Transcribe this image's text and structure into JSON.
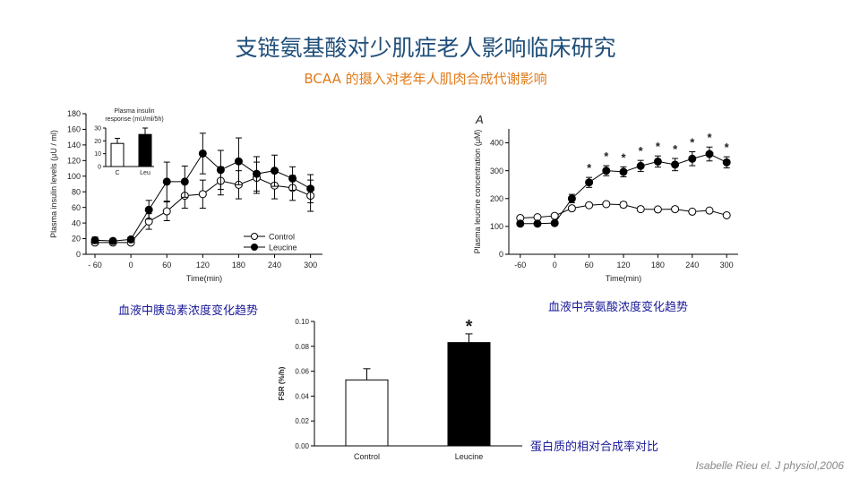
{
  "header": {
    "title": "支链氨基酸对少肌症老人影响临床研究",
    "subtitle": "BCAA 的摄入对老年人肌肉合成代谢影响"
  },
  "captions": {
    "insulin": "血液中胰岛素浓度变化趋势",
    "leucine": "血液中亮氨酸浓度变化趋势",
    "fsr": "蛋白质的相对合成率对比"
  },
  "citation": "Isabelle Rieu el. J physiol,2006",
  "chart_data": [
    {
      "id": "insulin",
      "type": "line",
      "xlabel": "Time(min)",
      "ylabel": "Plasma insulin levels (μU / ml)",
      "xlim": [
        -75,
        320
      ],
      "ylim": [
        0,
        180
      ],
      "xticks": [
        -60,
        0,
        60,
        120,
        180,
        240,
        300
      ],
      "xtick_labels": [
        "- 60",
        "0",
        "60",
        "120",
        "180",
        "240",
        "300"
      ],
      "yticks": [
        0,
        20,
        40,
        60,
        80,
        100,
        120,
        140,
        160,
        180
      ],
      "legend_position": "lower-right",
      "x": [
        -60,
        -30,
        0,
        30,
        60,
        90,
        120,
        150,
        180,
        210,
        240,
        270,
        300
      ],
      "series": [
        {
          "name": "Control",
          "marker": "open",
          "values": [
            15,
            15,
            15,
            42,
            55,
            75,
            77,
            94,
            89,
            98,
            88,
            85,
            75
          ],
          "errors": [
            3,
            2,
            2,
            10,
            12,
            16,
            18,
            18,
            18,
            20,
            17,
            16,
            20
          ]
        },
        {
          "name": "Leucine",
          "marker": "filled",
          "values": [
            18,
            17,
            19,
            57,
            93,
            93,
            129,
            108,
            119,
            103,
            107,
            97,
            84
          ],
          "errors": [
            4,
            3,
            3,
            12,
            25,
            20,
            26,
            25,
            30,
            22,
            20,
            15,
            18
          ]
        }
      ],
      "inset": {
        "type": "bar",
        "title": "Plasma insulin response (mU/ml/5h)",
        "categories": [
          "C",
          "Leu"
        ],
        "values": [
          18,
          25
        ],
        "errors": [
          4,
          5
        ],
        "colors": [
          "#ffffff",
          "#000000"
        ],
        "ylim": [
          0,
          30
        ],
        "yticks": [
          0,
          10,
          20,
          30
        ]
      }
    },
    {
      "id": "leucine",
      "type": "line",
      "panel_label": "A",
      "xlabel": "Time(min)",
      "ylabel": "Plasma leucine concentration (μM)",
      "xlim": [
        -80,
        320
      ],
      "ylim": [
        0,
        450
      ],
      "xticks": [
        -60,
        0,
        60,
        120,
        180,
        240,
        300
      ],
      "xtick_labels": [
        "-60",
        "0",
        "60",
        "120",
        "180",
        "240",
        "300"
      ],
      "yticks": [
        0,
        100,
        200,
        300,
        400
      ],
      "x": [
        -60,
        -30,
        0,
        30,
        60,
        90,
        120,
        150,
        180,
        210,
        240,
        270,
        300
      ],
      "series": [
        {
          "name": "Control",
          "marker": "open",
          "values": [
            130,
            133,
            138,
            165,
            176,
            180,
            178,
            162,
            161,
            162,
            153,
            157,
            140
          ],
          "errors": [
            5,
            5,
            6,
            8,
            8,
            8,
            10,
            8,
            8,
            8,
            6,
            6,
            6
          ]
        },
        {
          "name": "Leucine",
          "marker": "filled",
          "values": [
            110,
            110,
            112,
            200,
            258,
            300,
            296,
            317,
            333,
            322,
            343,
            360,
            330
          ],
          "errors": [
            6,
            6,
            6,
            15,
            18,
            18,
            18,
            20,
            20,
            22,
            25,
            25,
            20
          ]
        }
      ],
      "significance": {
        "symbol": "*",
        "x": [
          60,
          90,
          120,
          150,
          180,
          210,
          240,
          270,
          300
        ]
      }
    },
    {
      "id": "fsr",
      "type": "bar",
      "ylabel": "FSR (%/h)",
      "categories": [
        "Control",
        "Leucine"
      ],
      "values": [
        0.053,
        0.083
      ],
      "errors": [
        0.009,
        0.007
      ],
      "colors": [
        "#ffffff",
        "#000000"
      ],
      "ylim": [
        0,
        0.1
      ],
      "yticks": [
        0,
        0.02,
        0.04,
        0.06,
        0.08,
        0.1
      ],
      "ytick_labels": [
        "0.00",
        "0.02",
        "0.04",
        "0.06",
        "0.08",
        "0.10"
      ],
      "significance": {
        "symbol": "*",
        "category": "Leucine"
      }
    }
  ]
}
